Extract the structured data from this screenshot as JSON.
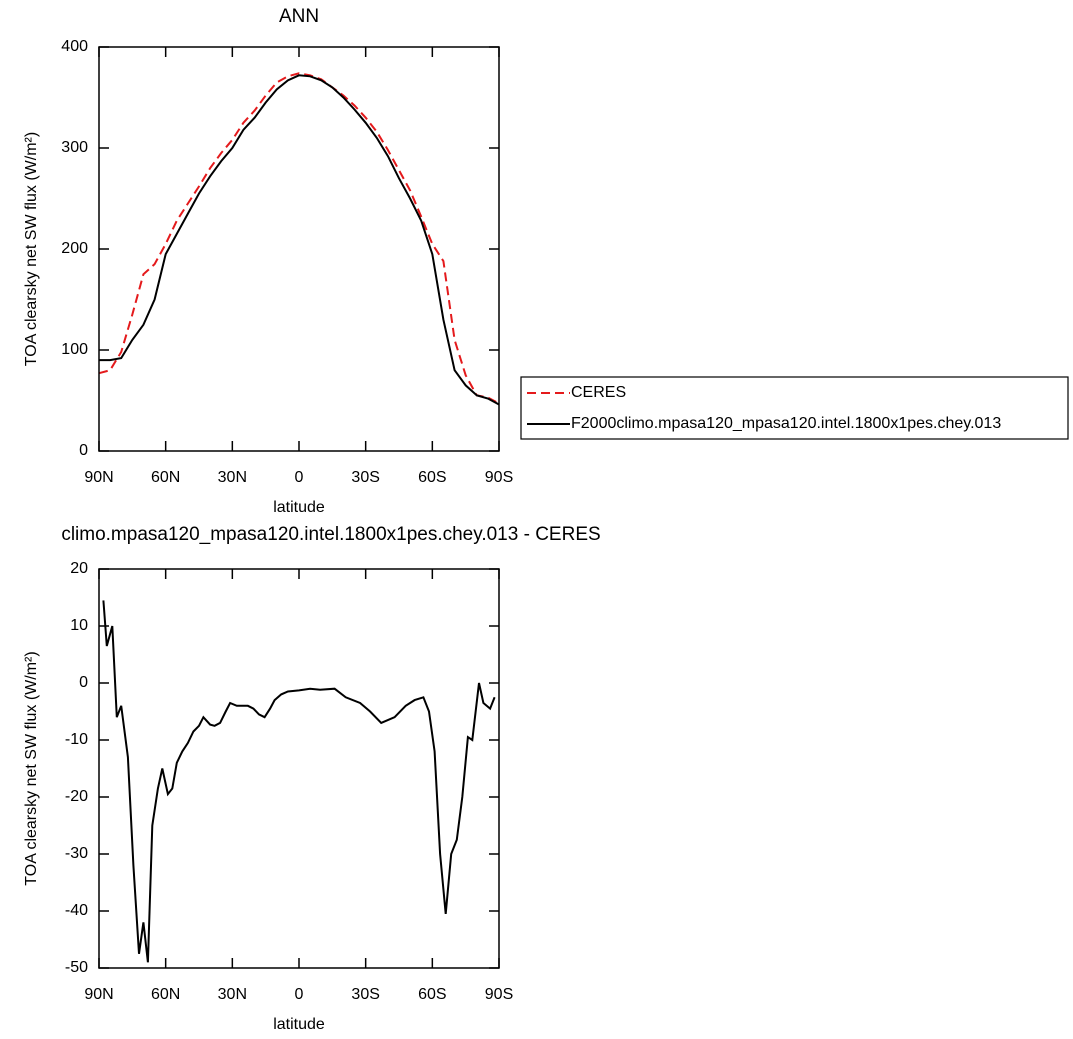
{
  "chart_data": [
    {
      "type": "line",
      "title": "ANN",
      "xlabel": "latitude",
      "ylabel": "TOA clearsky net SW flux (W/m²)",
      "x": [
        90,
        85,
        80,
        75,
        70,
        65,
        60,
        55,
        50,
        45,
        40,
        35,
        30,
        25,
        20,
        15,
        10,
        5,
        0,
        -5,
        -10,
        -15,
        -20,
        -25,
        -30,
        -35,
        -40,
        -45,
        -50,
        -55,
        -60,
        -65,
        -70,
        -75,
        -80,
        -85,
        -90
      ],
      "xlim": [
        90,
        -90
      ],
      "xticks": [
        {
          "value": 90,
          "label": "90N"
        },
        {
          "value": 60,
          "label": "60N"
        },
        {
          "value": 30,
          "label": "30N"
        },
        0,
        {
          "value": -30,
          "label": "30S"
        },
        {
          "value": -60,
          "label": "60S"
        },
        {
          "value": -90,
          "label": "90S"
        }
      ],
      "ylim": [
        0,
        400
      ],
      "yticks": [
        0,
        100,
        200,
        300,
        400
      ],
      "series": [
        {
          "name": "CERES",
          "color": "#e41a1c",
          "style": "dashed",
          "values": [
            77,
            80,
            98,
            135,
            175,
            185,
            205,
            228,
            245,
            262,
            280,
            295,
            308,
            325,
            337,
            352,
            365,
            371,
            374,
            372,
            368,
            360,
            352,
            342,
            330,
            316,
            298,
            278,
            258,
            232,
            205,
            188,
            110,
            75,
            55,
            53,
            47
          ]
        },
        {
          "name": "F2000climo.mpasa120_mpasa120.intel.1800x1pes.chey.013",
          "color": "#000000",
          "style": "solid",
          "values": [
            90,
            90,
            92,
            110,
            125,
            150,
            195,
            215,
            235,
            255,
            272,
            287,
            300,
            318,
            330,
            345,
            358,
            367,
            372,
            371,
            367,
            360,
            350,
            338,
            325,
            310,
            292,
            270,
            250,
            228,
            195,
            130,
            80,
            65,
            55,
            52,
            46
          ]
        }
      ]
    },
    {
      "type": "line",
      "title": "climo.mpasa120_mpasa120.intel.1800x1pes.chey.013 - CERES",
      "xlabel": "latitude",
      "ylabel": "TOA clearsky net SW flux (W/m²)",
      "x": [
        88,
        86.5,
        84,
        82,
        80,
        77,
        74.5,
        72,
        70,
        68,
        66,
        63.5,
        61.5,
        59,
        57,
        55,
        52.5,
        50,
        47.5,
        45,
        43,
        40,
        38,
        35.5,
        33,
        31,
        28,
        25,
        23,
        20.5,
        18,
        15.5,
        13,
        11,
        8,
        5,
        0,
        -5,
        -9.5,
        -16,
        -21,
        -27.5,
        -32,
        -37,
        -43,
        -48,
        -52,
        -56,
        -58.5,
        -61,
        -63.5,
        -66,
        -68.5,
        -71,
        -73.5,
        -76,
        -78,
        -81,
        -83,
        -86,
        -88
      ],
      "xlim": [
        90,
        -90
      ],
      "xticks": [
        {
          "value": 90,
          "label": "90N"
        },
        {
          "value": 60,
          "label": "60N"
        },
        {
          "value": 30,
          "label": "30N"
        },
        0,
        {
          "value": -30,
          "label": "30S"
        },
        {
          "value": -60,
          "label": "60S"
        },
        {
          "value": -90,
          "label": "90S"
        }
      ],
      "ylim": [
        -50,
        20
      ],
      "yticks": [
        -50,
        -40,
        -30,
        -20,
        -10,
        0,
        10,
        20
      ],
      "series": [
        {
          "name": null,
          "color": "#000000",
          "style": "solid",
          "values": [
            14.5,
            6.5,
            10,
            -6,
            -4,
            -13,
            -32,
            -47.5,
            -42,
            -49,
            -25,
            -18.5,
            -15,
            -19.5,
            -18.5,
            -14,
            -12,
            -10.5,
            -8.5,
            -7.5,
            -6,
            -7.3,
            -7.5,
            -7,
            -5,
            -3.5,
            -4,
            -4,
            -4,
            -4.5,
            -5.5,
            -6,
            -4.5,
            -3,
            -2,
            -1.5,
            -1.3,
            -1,
            -1.2,
            -1,
            -2.5,
            -3.5,
            -5,
            -7,
            -6,
            -4,
            -3,
            -2.5,
            -5,
            -12,
            -30,
            -40.5,
            -30,
            -27.5,
            -20,
            -9.5,
            -10,
            0,
            -3.5,
            -4.5,
            -2.5
          ]
        }
      ]
    }
  ]
}
